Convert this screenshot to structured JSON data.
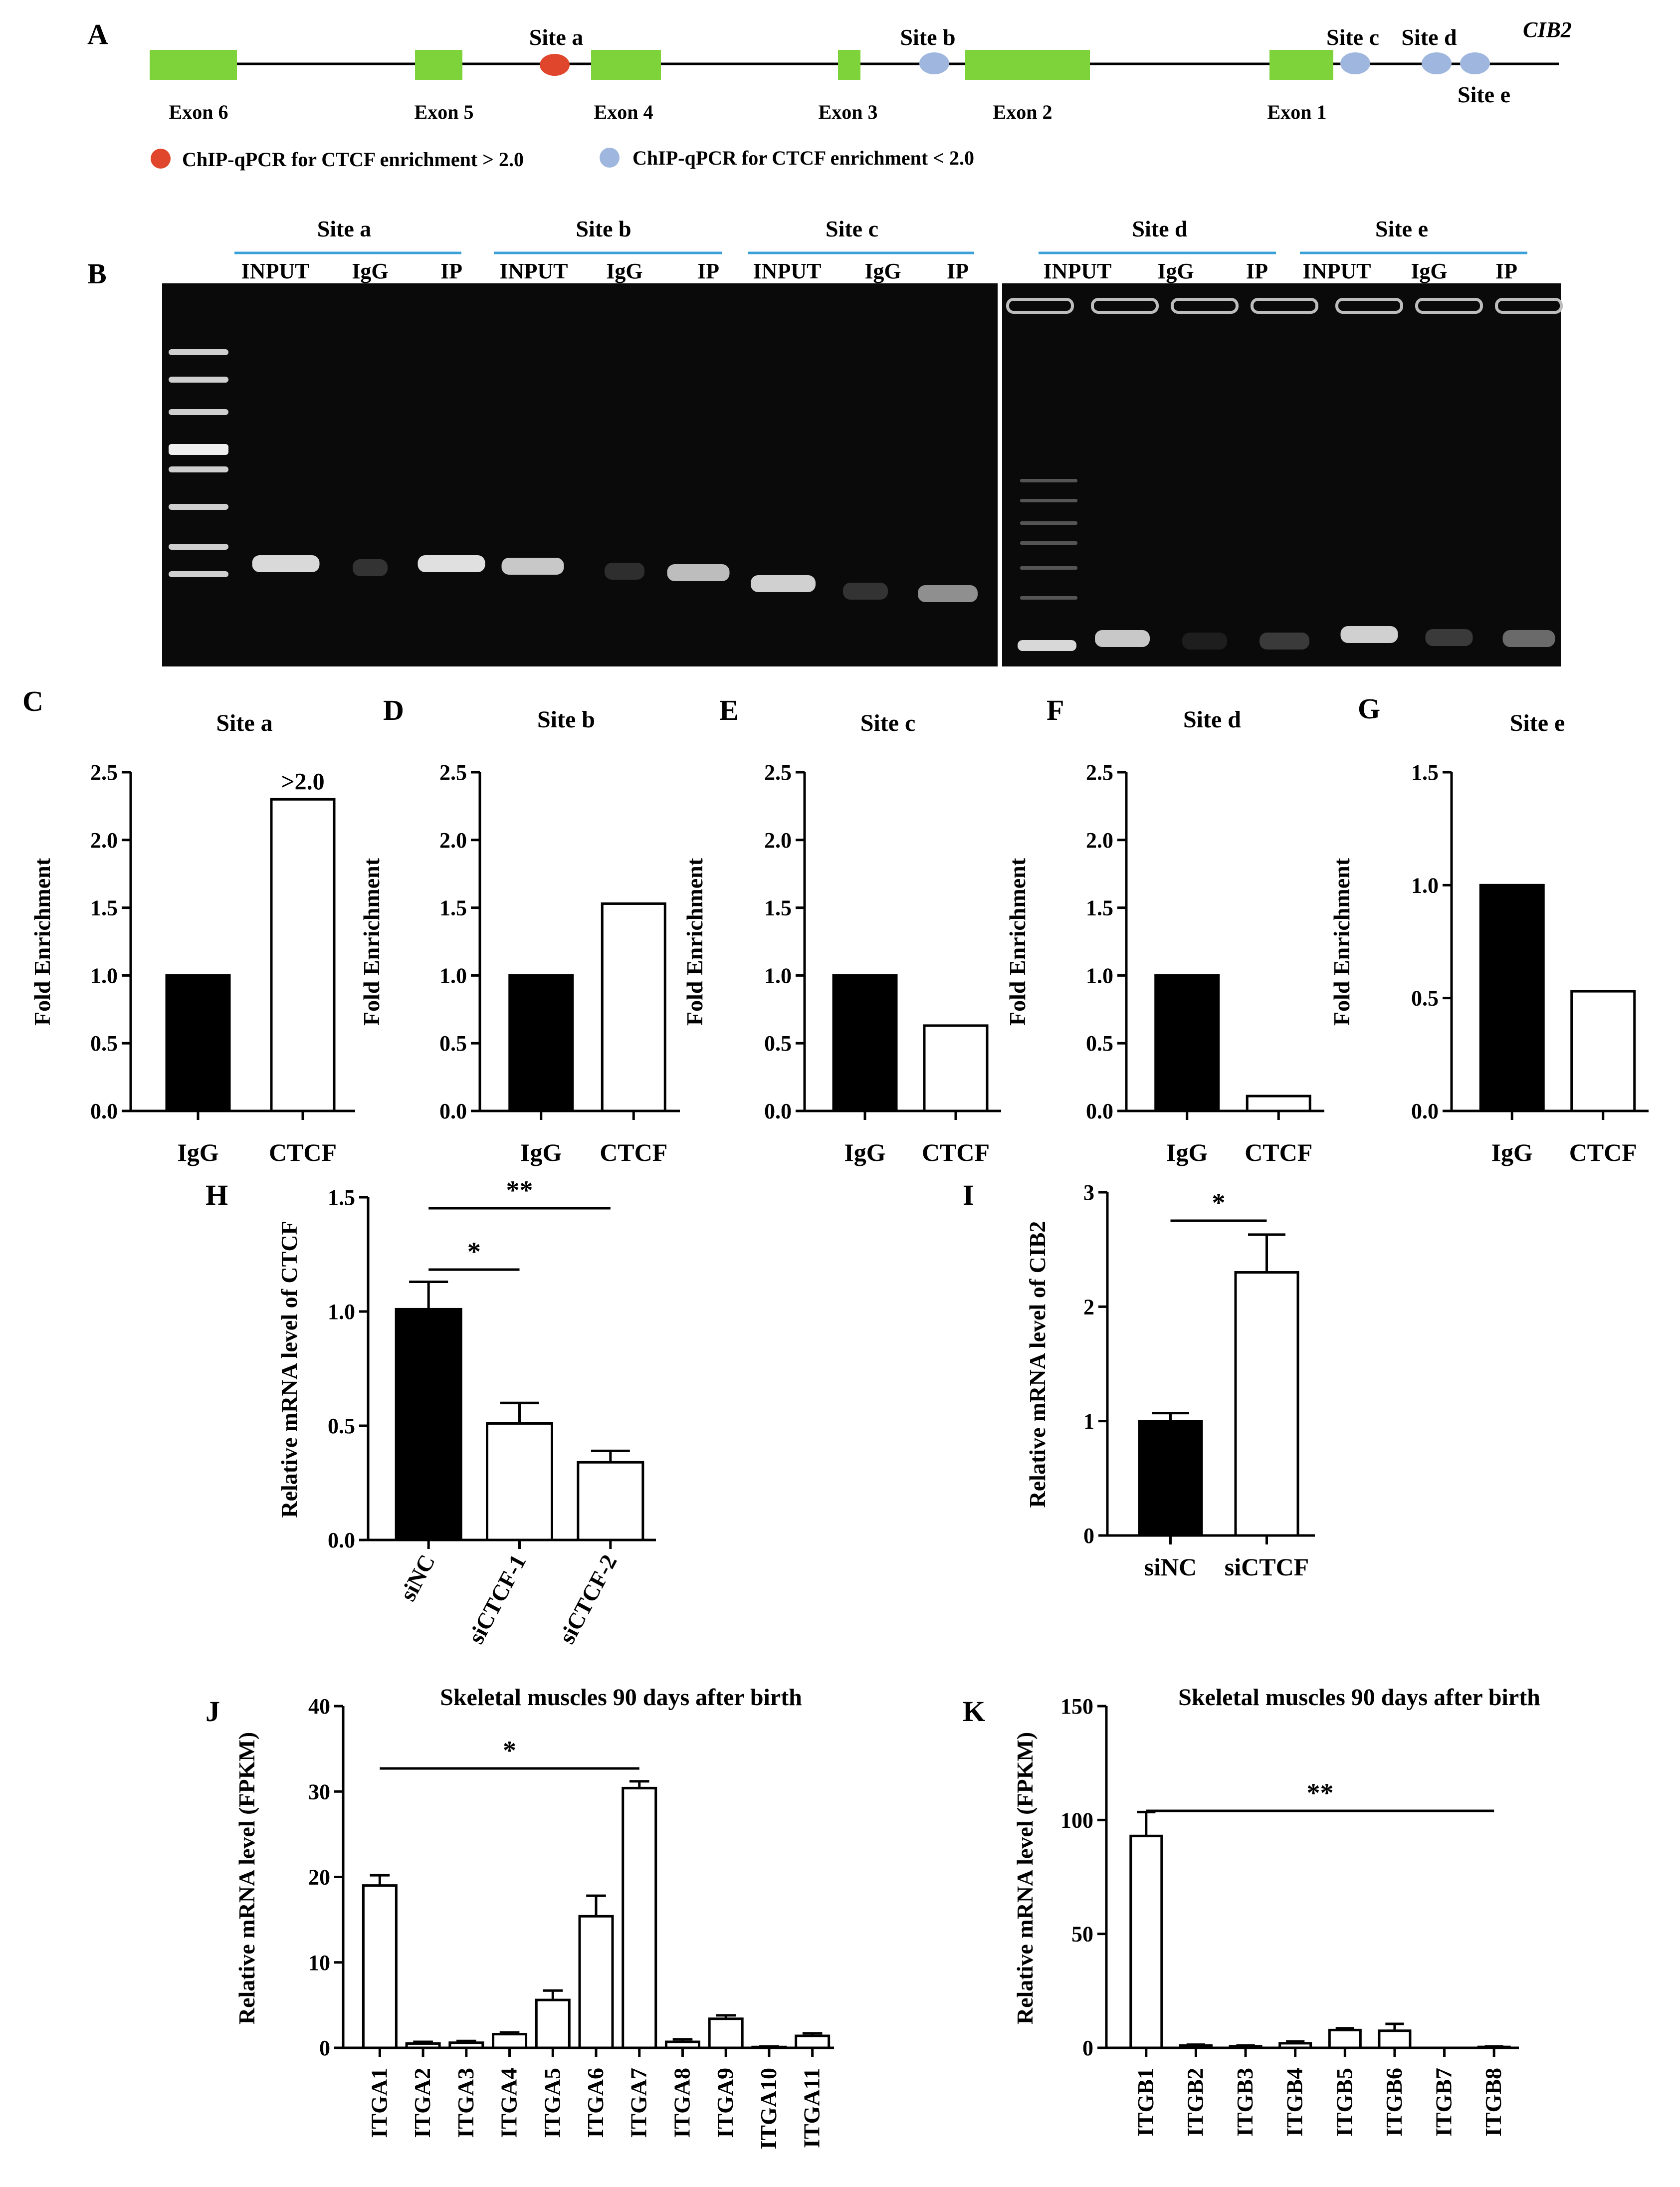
{
  "gene_map": {
    "panel_letter": "A",
    "gene_label": "CIB2",
    "exons": [
      {
        "label": "Exon 6"
      },
      {
        "label": "Exon 5"
      },
      {
        "label": "Exon 4"
      },
      {
        "label": "Exon 3"
      },
      {
        "label": "Exon 2"
      },
      {
        "label": "Exon 1"
      }
    ],
    "sites": [
      {
        "label": "Site a",
        "enrichment": "high"
      },
      {
        "label": "Site b",
        "enrichment": "low"
      },
      {
        "label": "Site c",
        "enrichment": "low"
      },
      {
        "label": "Site d",
        "enrichment": "low"
      },
      {
        "label": "Site e",
        "enrichment": "low"
      }
    ],
    "legend": {
      "high": "ChIP-qPCR for CTCF enrichment > 2.0",
      "low": "ChIP-qPCR for CTCF enrichment < 2.0"
    },
    "colors": {
      "exon": "#7ed23a",
      "high": "#e0462b",
      "low": "#9fb7de"
    }
  },
  "gel": {
    "panel_letter": "B",
    "groups": [
      {
        "site": "Site a",
        "lanes": [
          "INPUT",
          "IgG",
          "IP"
        ]
      },
      {
        "site": "Site b",
        "lanes": [
          "INPUT",
          "IgG",
          "IP"
        ]
      },
      {
        "site": "Site c",
        "lanes": [
          "INPUT",
          "IgG",
          "IP"
        ]
      },
      {
        "site": "Site d",
        "lanes": [
          "INPUT",
          "IgG",
          "IP"
        ]
      },
      {
        "site": "Site e",
        "lanes": [
          "INPUT",
          "IgG",
          "IP"
        ]
      }
    ]
  },
  "chart_data": [
    {
      "panel": "C",
      "type": "bar",
      "title": "Site a",
      "ylabel": "Fold Enrichment",
      "categories": [
        "IgG",
        "CTCF"
      ],
      "values": [
        1.0,
        2.3
      ],
      "fills": [
        "#000000",
        "#ffffff"
      ],
      "ylim": [
        0,
        2.5
      ],
      "yticks": [
        "0.0",
        "0.5",
        "1.0",
        "1.5",
        "2.0",
        "2.5"
      ],
      "annotation": ">2.0"
    },
    {
      "panel": "D",
      "type": "bar",
      "title": "Site b",
      "ylabel": "Fold Enrichment",
      "categories": [
        "IgG",
        "CTCF"
      ],
      "values": [
        1.0,
        1.53
      ],
      "fills": [
        "#000000",
        "#ffffff"
      ],
      "ylim": [
        0,
        2.5
      ],
      "yticks": [
        "0.0",
        "0.5",
        "1.0",
        "1.5",
        "2.0",
        "2.5"
      ]
    },
    {
      "panel": "E",
      "type": "bar",
      "title": "Site c",
      "ylabel": "Fold Enrichment",
      "categories": [
        "IgG",
        "CTCF"
      ],
      "values": [
        1.0,
        0.63
      ],
      "fills": [
        "#000000",
        "#ffffff"
      ],
      "ylim": [
        0,
        2.5
      ],
      "yticks": [
        "0.0",
        "0.5",
        "1.0",
        "1.5",
        "2.0",
        "2.5"
      ]
    },
    {
      "panel": "F",
      "type": "bar",
      "title": "Site d",
      "ylabel": "Fold Enrichment",
      "categories": [
        "IgG",
        "CTCF"
      ],
      "values": [
        1.0,
        0.11
      ],
      "fills": [
        "#000000",
        "#ffffff"
      ],
      "ylim": [
        0,
        2.5
      ],
      "yticks": [
        "0.0",
        "0.5",
        "1.0",
        "1.5",
        "2.0",
        "2.5"
      ]
    },
    {
      "panel": "G",
      "type": "bar",
      "title": "Site e",
      "ylabel": "Fold Enrichment",
      "categories": [
        "IgG",
        "CTCF"
      ],
      "values": [
        1.0,
        0.53
      ],
      "fills": [
        "#000000",
        "#ffffff"
      ],
      "ylim": [
        0,
        1.5
      ],
      "yticks": [
        "0.0",
        "0.5",
        "1.0",
        "1.5"
      ]
    },
    {
      "panel": "H",
      "type": "bar",
      "title": "",
      "ylabel": "Relative mRNA level of CTCF",
      "categories": [
        "siNC",
        "siCTCF-1",
        "siCTCF-2"
      ],
      "values": [
        1.01,
        0.51,
        0.34
      ],
      "errors": [
        0.12,
        0.09,
        0.05
      ],
      "fills": [
        "#000000",
        "#ffffff",
        "#ffffff"
      ],
      "ylim": [
        0,
        1.5
      ],
      "yticks": [
        "0.0",
        "0.5",
        "1.0",
        "1.5"
      ],
      "rotate_labels": true,
      "significance": [
        {
          "from": 0,
          "to": 1,
          "label": "*"
        },
        {
          "from": 0,
          "to": 2,
          "label": "**"
        }
      ]
    },
    {
      "panel": "I",
      "type": "bar",
      "title": "",
      "ylabel": "Relative mRNA level of CIB2",
      "categories": [
        "siNC",
        "siCTCF"
      ],
      "values": [
        1.0,
        2.3
      ],
      "errors": [
        0.07,
        0.33
      ],
      "fills": [
        "#000000",
        "#ffffff"
      ],
      "ylim": [
        0,
        3
      ],
      "yticks": [
        "0",
        "1",
        "2",
        "3"
      ],
      "significance": [
        {
          "from": 0,
          "to": 1,
          "label": "*"
        }
      ]
    },
    {
      "panel": "J",
      "type": "bar",
      "title": "Skeletal muscles 90 days after birth",
      "ylabel": "Relative mRNA level (FPKM)",
      "categories": [
        "ITGA1",
        "ITGA2",
        "ITGA3",
        "ITGA4",
        "ITGA5",
        "ITGA6",
        "ITGA7",
        "ITGA8",
        "ITGA9",
        "ITGA10",
        "ITGA11"
      ],
      "values": [
        19.0,
        0.5,
        0.6,
        1.6,
        5.6,
        15.4,
        30.4,
        0.7,
        3.4,
        0.1,
        1.4
      ],
      "errors": [
        1.2,
        0.2,
        0.2,
        0.2,
        1.1,
        2.4,
        0.8,
        0.3,
        0.4,
        0.05,
        0.3
      ],
      "fills": [
        "#ffffff"
      ],
      "ylim": [
        0,
        40
      ],
      "yticks": [
        "0",
        "10",
        "20",
        "30",
        "40"
      ],
      "rotate_labels": true,
      "significance": [
        {
          "from": 0,
          "to": 6,
          "label": "*"
        }
      ]
    },
    {
      "panel": "K",
      "type": "bar",
      "title": "Skeletal muscles 90 days after birth",
      "ylabel": "Relative mRNA level (FPKM)",
      "categories": [
        "ITGB1",
        "ITGB2",
        "ITGB3",
        "ITGB4",
        "ITGB5",
        "ITGB6",
        "ITGB7",
        "ITGB8"
      ],
      "values": [
        93.0,
        1.0,
        0.7,
        2.0,
        7.8,
        7.5,
        0.0,
        0.4
      ],
      "errors": [
        10.5,
        0.4,
        0.3,
        0.8,
        0.8,
        3.0,
        0.0,
        0.2
      ],
      "fills": [
        "#ffffff"
      ],
      "ylim": [
        0,
        150
      ],
      "yticks": [
        "0",
        "50",
        "100",
        "150"
      ],
      "rotate_labels": true,
      "significance": [
        {
          "from": 0,
          "to": 7,
          "label": "**"
        }
      ]
    }
  ]
}
